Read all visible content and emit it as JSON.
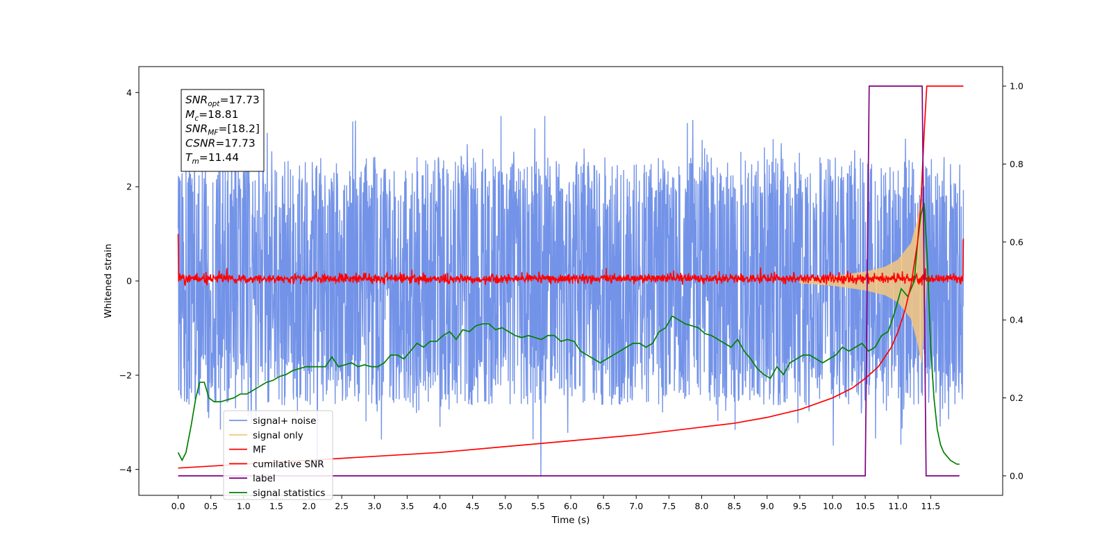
{
  "chart_data": {
    "type": "line",
    "xlabel": "Time (s)",
    "ylabel": "Whitened strain",
    "xlim": [
      -0.6,
      12.6
    ],
    "ylim": [
      -4.55,
      4.55
    ],
    "y2lim": [
      -0.05,
      1.05
    ],
    "x_ticks": [
      0.0,
      0.5,
      1.0,
      1.5,
      2.0,
      2.5,
      3.0,
      3.5,
      4.0,
      4.5,
      5.0,
      5.5,
      6.0,
      6.5,
      7.0,
      7.5,
      8.0,
      8.5,
      9.0,
      9.5,
      10.0,
      10.5,
      11.0,
      11.5
    ],
    "x_tick_labels": [
      "0.0",
      "0.5",
      "1.0",
      "1.5",
      "2.0",
      "2.5",
      "3.0",
      "3.5",
      "4.0",
      "4.5",
      "5.0",
      "5.5",
      "6.0",
      "6.5",
      "7.0",
      "7.5",
      "8.0",
      "8.5",
      "9.0",
      "9.5",
      "10.0",
      "10.5",
      "11.0",
      "11.5"
    ],
    "y_ticks": [
      4,
      2,
      0,
      -2,
      -4
    ],
    "y_tick_labels": [
      "4",
      "2",
      "0",
      "−2",
      "−4"
    ],
    "y2_ticks": [
      1.0,
      0.8,
      0.6,
      0.4,
      0.2,
      0.0
    ],
    "y2_tick_labels": [
      "1.0",
      "0.8",
      "0.6",
      "0.4",
      "0.2",
      "0.0"
    ],
    "grid": false,
    "legend_position": "lower-left",
    "annotation": {
      "lines": [
        {
          "base": "SNR",
          "sub": "opt",
          "value": "=17.73"
        },
        {
          "base": "M",
          "sub": "c",
          "value": "=18.81"
        },
        {
          "base": "SNR",
          "sub": "MF",
          "value": "=[18.2]"
        },
        {
          "base": "CSNR",
          "sub": "",
          "value": "=17.73"
        },
        {
          "base": "T",
          "sub": "m",
          "value": "=11.44"
        }
      ]
    },
    "series": [
      {
        "name": "signal+ noise",
        "color": "#7393e8",
        "axis": "left",
        "kind": "noise-band",
        "t_start": 0.0,
        "t_end": 12.0,
        "typical_amplitude": 1.6,
        "peak_max": 3.5,
        "peak_min": -4.15
      },
      {
        "name": "signal only",
        "color": "#f5c77e",
        "axis": "left",
        "kind": "chirp",
        "t_start": 9.5,
        "t_end": 11.44,
        "envelope_t": [
          9.5,
          10.0,
          10.5,
          10.8,
          11.0,
          11.2,
          11.3,
          11.36,
          11.44
        ],
        "envelope_amp": [
          0.05,
          0.1,
          0.2,
          0.3,
          0.45,
          0.8,
          1.3,
          1.75,
          0.0
        ]
      },
      {
        "name": "MF",
        "color": "#ff0000",
        "axis": "left",
        "kind": "noise-near-zero",
        "t_start": 0.0,
        "t_end": 12.0,
        "level": 0.05,
        "spread": 0.08,
        "start_value": 1.0,
        "end_value": 0.9
      },
      {
        "name": "cumilative SNR",
        "color": "#ff0000",
        "axis": "right",
        "x": [
          0.0,
          1.0,
          2.0,
          3.0,
          4.0,
          5.0,
          6.0,
          7.0,
          8.0,
          8.5,
          9.0,
          9.5,
          10.0,
          10.3,
          10.5,
          10.7,
          10.9,
          11.0,
          11.1,
          11.2,
          11.3,
          11.35,
          11.4,
          11.44,
          11.5,
          12.0
        ],
        "y": [
          0.02,
          0.03,
          0.04,
          0.05,
          0.06,
          0.075,
          0.09,
          0.105,
          0.125,
          0.135,
          0.15,
          0.17,
          0.2,
          0.225,
          0.25,
          0.28,
          0.33,
          0.37,
          0.42,
          0.49,
          0.6,
          0.7,
          0.88,
          1.0,
          1.0,
          1.0
        ]
      },
      {
        "name": "label",
        "color": "#800080",
        "axis": "right",
        "x": [
          0.0,
          10.5,
          10.56,
          11.37,
          11.43,
          11.94
        ],
        "y": [
          0.0,
          0.0,
          1.0,
          1.0,
          0.0,
          0.0
        ]
      },
      {
        "name": "signal statistics",
        "color": "#008000",
        "axis": "right",
        "x": [
          0.0,
          0.06,
          0.12,
          0.2,
          0.27,
          0.33,
          0.4,
          0.47,
          0.55,
          0.65,
          0.75,
          0.85,
          0.95,
          1.05,
          1.15,
          1.25,
          1.35,
          1.45,
          1.55,
          1.65,
          1.75,
          1.85,
          1.95,
          2.05,
          2.15,
          2.25,
          2.35,
          2.45,
          2.55,
          2.65,
          2.75,
          2.85,
          2.95,
          3.05,
          3.15,
          3.25,
          3.35,
          3.45,
          3.55,
          3.65,
          3.75,
          3.85,
          3.95,
          4.05,
          4.15,
          4.25,
          4.35,
          4.45,
          4.55,
          4.65,
          4.75,
          4.85,
          4.95,
          5.05,
          5.15,
          5.25,
          5.35,
          5.45,
          5.55,
          5.65,
          5.75,
          5.85,
          5.95,
          6.05,
          6.15,
          6.25,
          6.35,
          6.45,
          6.55,
          6.65,
          6.75,
          6.85,
          6.95,
          7.05,
          7.15,
          7.25,
          7.35,
          7.45,
          7.55,
          7.65,
          7.75,
          7.85,
          7.95,
          8.05,
          8.15,
          8.25,
          8.35,
          8.45,
          8.55,
          8.65,
          8.75,
          8.85,
          8.95,
          9.05,
          9.15,
          9.25,
          9.35,
          9.45,
          9.55,
          9.65,
          9.75,
          9.85,
          9.95,
          10.05,
          10.15,
          10.25,
          10.35,
          10.45,
          10.55,
          10.65,
          10.75,
          10.85,
          10.95,
          11.05,
          11.15,
          11.25,
          11.3,
          11.35,
          11.4,
          11.45,
          11.5,
          11.55,
          11.6,
          11.65,
          11.7,
          11.8,
          11.9,
          11.94
        ],
        "y": [
          0.06,
          0.04,
          0.06,
          0.13,
          0.2,
          0.24,
          0.24,
          0.2,
          0.19,
          0.19,
          0.195,
          0.2,
          0.21,
          0.21,
          0.22,
          0.23,
          0.24,
          0.245,
          0.255,
          0.26,
          0.27,
          0.275,
          0.28,
          0.28,
          0.28,
          0.28,
          0.305,
          0.28,
          0.285,
          0.29,
          0.28,
          0.285,
          0.28,
          0.28,
          0.29,
          0.31,
          0.31,
          0.3,
          0.32,
          0.34,
          0.33,
          0.345,
          0.345,
          0.36,
          0.37,
          0.35,
          0.375,
          0.37,
          0.385,
          0.39,
          0.39,
          0.375,
          0.38,
          0.37,
          0.36,
          0.355,
          0.36,
          0.355,
          0.35,
          0.36,
          0.36,
          0.345,
          0.35,
          0.345,
          0.32,
          0.31,
          0.3,
          0.29,
          0.3,
          0.31,
          0.32,
          0.33,
          0.34,
          0.34,
          0.33,
          0.34,
          0.37,
          0.38,
          0.41,
          0.4,
          0.39,
          0.385,
          0.38,
          0.365,
          0.36,
          0.35,
          0.34,
          0.33,
          0.35,
          0.32,
          0.3,
          0.275,
          0.26,
          0.25,
          0.28,
          0.26,
          0.29,
          0.3,
          0.31,
          0.31,
          0.3,
          0.29,
          0.3,
          0.31,
          0.33,
          0.32,
          0.33,
          0.34,
          0.32,
          0.33,
          0.36,
          0.37,
          0.42,
          0.48,
          0.46,
          0.5,
          0.6,
          0.67,
          0.7,
          0.55,
          0.33,
          0.2,
          0.12,
          0.08,
          0.06,
          0.04,
          0.03,
          0.03
        ]
      }
    ]
  }
}
